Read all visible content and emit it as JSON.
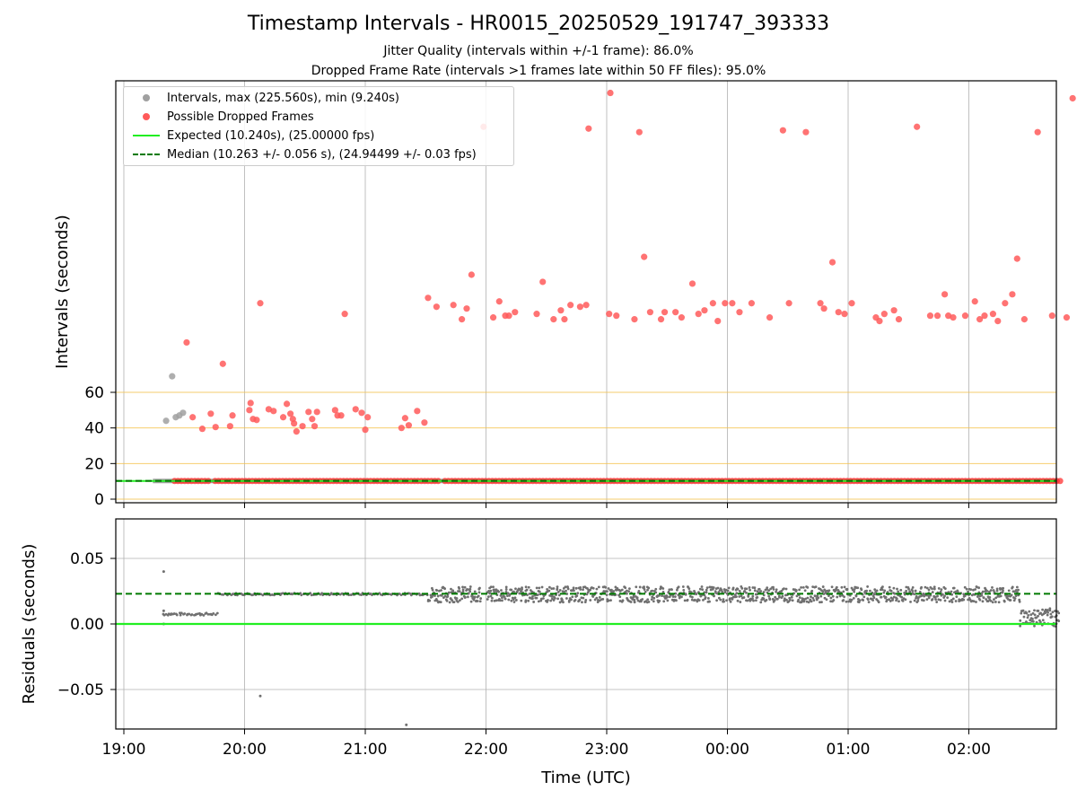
{
  "chart_data": [
    {
      "type": "scatter",
      "title": "Timestamp Intervals - HR0015_20250529_191747_393333",
      "subtitle_1": "Jitter Quality (intervals within +/-1 frame): 86.0%",
      "subtitle_2": "Dropped Frame Rate (intervals >1 frames late within 50 FF files): 95.0%",
      "xlabel": "",
      "ylabel": "Intervals (seconds)",
      "x_tick_labels": [
        "19:00",
        "20:00",
        "21:00",
        "22:00",
        "23:00",
        "00:00",
        "01:00",
        "02:00"
      ],
      "y_ticks": [
        0,
        20,
        40,
        60
      ],
      "threshold_lines": [
        0,
        20,
        40,
        60
      ],
      "grid": true,
      "legend_placement": "top-left",
      "legend": [
        {
          "label": "Intervals, max (225.560s), min (9.240s)",
          "marker": "dot",
          "color": "#a0a0a0"
        },
        {
          "label": "Possible Dropped Frames",
          "marker": "dot",
          "color": "#ff5a5a"
        },
        {
          "label": "Expected (10.240s), (25.00000 fps)",
          "marker": "line",
          "color": "#22ee22"
        },
        {
          "label": "Median (10.263 +/- 0.056 s), (24.94499 +/- 0.03 fps)",
          "marker": "dash",
          "color": "#007a00"
        }
      ],
      "expected_interval": 10.24,
      "median_interval": 10.263,
      "baseline_band": {
        "x_start_hours": 0.3,
        "x_end_hours": 7.75,
        "y": 10.2
      },
      "series": [
        {
          "name": "Intervals, max (225.560s), min (9.240s)",
          "color": "#a0a0a0",
          "points": [
            [
              0.35,
              44
            ],
            [
              0.4,
              69
            ],
            [
              0.43,
              46
            ],
            [
              0.46,
              47
            ],
            [
              0.49,
              48.5
            ]
          ]
        },
        {
          "name": "Possible Dropped Frames",
          "color": "#ff5a5a",
          "points": [
            [
              0.52,
              88
            ],
            [
              0.57,
              46
            ],
            [
              0.65,
              39.5
            ],
            [
              0.72,
              48
            ],
            [
              0.76,
              40.5
            ],
            [
              0.82,
              76
            ],
            [
              0.88,
              41
            ],
            [
              0.9,
              47
            ],
            [
              1.04,
              50
            ],
            [
              1.05,
              54
            ],
            [
              1.07,
              45
            ],
            [
              1.1,
              44.5
            ],
            [
              1.13,
              110
            ],
            [
              1.2,
              50.5
            ],
            [
              1.24,
              49.5
            ],
            [
              1.32,
              46
            ],
            [
              1.35,
              53.5
            ],
            [
              1.38,
              48
            ],
            [
              1.4,
              45
            ],
            [
              1.41,
              42.5
            ],
            [
              1.43,
              38
            ],
            [
              1.48,
              41
            ],
            [
              1.53,
              49
            ],
            [
              1.56,
              45
            ],
            [
              1.58,
              41
            ],
            [
              1.6,
              49
            ],
            [
              1.75,
              50
            ],
            [
              1.77,
              47
            ],
            [
              1.8,
              47
            ],
            [
              1.83,
              104
            ],
            [
              1.92,
              50.5
            ],
            [
              1.97,
              48.5
            ],
            [
              2.0,
              39
            ],
            [
              2.02,
              46
            ],
            [
              2.3,
              40
            ],
            [
              2.33,
              45.5
            ],
            [
              2.36,
              41.5
            ],
            [
              2.43,
              49.5
            ],
            [
              2.49,
              43
            ],
            [
              2.52,
              113
            ],
            [
              2.59,
              108
            ],
            [
              2.73,
              109
            ],
            [
              2.8,
              101
            ],
            [
              2.84,
              107
            ],
            [
              2.88,
              126
            ],
            [
              2.98,
              209
            ],
            [
              3.06,
              102
            ],
            [
              3.11,
              111
            ],
            [
              3.16,
              103
            ],
            [
              3.19,
              103
            ],
            [
              3.24,
              105
            ],
            [
              3.42,
              104
            ],
            [
              3.47,
              122
            ],
            [
              3.56,
              101
            ],
            [
              3.62,
              106
            ],
            [
              3.65,
              101
            ],
            [
              3.7,
              109
            ],
            [
              3.78,
              108
            ],
            [
              3.83,
              109
            ],
            [
              3.85,
              208
            ],
            [
              4.03,
              228
            ],
            [
              4.02,
              104
            ],
            [
              4.08,
              103
            ],
            [
              4.23,
              101
            ],
            [
              4.27,
              206
            ],
            [
              4.31,
              136
            ],
            [
              4.36,
              105
            ],
            [
              4.45,
              101
            ],
            [
              4.48,
              105
            ],
            [
              4.57,
              105
            ],
            [
              4.62,
              102
            ],
            [
              4.71,
              121
            ],
            [
              4.76,
              104
            ],
            [
              4.81,
              106
            ],
            [
              4.88,
              110
            ],
            [
              4.92,
              100
            ],
            [
              4.98,
              110
            ],
            [
              5.04,
              110
            ],
            [
              5.1,
              105
            ],
            [
              5.2,
              110
            ],
            [
              5.35,
              102
            ],
            [
              5.46,
              207
            ],
            [
              5.51,
              110
            ],
            [
              5.65,
              206
            ],
            [
              5.77,
              110
            ],
            [
              5.8,
              107
            ],
            [
              5.87,
              133
            ],
            [
              5.92,
              105
            ],
            [
              5.97,
              104
            ],
            [
              6.03,
              110
            ],
            [
              6.23,
              102
            ],
            [
              6.26,
              100
            ],
            [
              6.3,
              104
            ],
            [
              6.38,
              106
            ],
            [
              6.42,
              101
            ],
            [
              6.57,
              209
            ],
            [
              6.68,
              103
            ],
            [
              6.74,
              103
            ],
            [
              6.8,
              115
            ],
            [
              6.83,
              103
            ],
            [
              6.87,
              102
            ],
            [
              6.97,
              103
            ],
            [
              7.05,
              111
            ],
            [
              7.09,
              101
            ],
            [
              7.13,
              103
            ],
            [
              7.2,
              104
            ],
            [
              7.24,
              100
            ],
            [
              7.3,
              110
            ],
            [
              7.36,
              115
            ],
            [
              7.4,
              135
            ],
            [
              7.46,
              101
            ],
            [
              7.57,
              206
            ],
            [
              7.69,
              103
            ],
            [
              7.81,
              102
            ],
            [
              7.86,
              225
            ]
          ]
        }
      ]
    },
    {
      "type": "scatter",
      "title": "",
      "xlabel": "Time (UTC)",
      "ylabel": "Residuals (seconds)",
      "x_tick_labels": [
        "19:00",
        "20:00",
        "21:00",
        "22:00",
        "23:00",
        "00:00",
        "01:00",
        "02:00"
      ],
      "y_tick_labels": [
        "0.05",
        "0.00",
        "−0.05"
      ],
      "y_ticks": [
        0.05,
        0.0,
        -0.05
      ],
      "ylim": [
        -0.08,
        0.08
      ],
      "grid": true,
      "reference_lines": [
        {
          "label": "Expected",
          "y": 0.0,
          "color": "#22ee22"
        },
        {
          "label": "Median",
          "y": 0.023,
          "color": "#007a00"
        }
      ],
      "point_color": "#707070",
      "segments": [
        {
          "x_start_hours": 0.32,
          "x_end_hours": 0.77,
          "center": 0.0075,
          "spread": 0.001
        },
        {
          "x_start_hours": 0.77,
          "x_end_hours": 2.52,
          "center": 0.0228,
          "spread": 0.0008
        },
        {
          "x_start_hours": 2.52,
          "x_end_hours": 7.42,
          "center": 0.0225,
          "spread": 0.006
        },
        {
          "x_start_hours": 7.42,
          "x_end_hours": 7.75,
          "center": 0.005,
          "spread": 0.007
        }
      ],
      "outliers": [
        [
          0.33,
          0.04
        ],
        [
          0.33,
          0.0
        ],
        [
          0.33,
          0.01
        ],
        [
          1.13,
          -0.055
        ],
        [
          2.34,
          -0.077
        ]
      ]
    }
  ]
}
